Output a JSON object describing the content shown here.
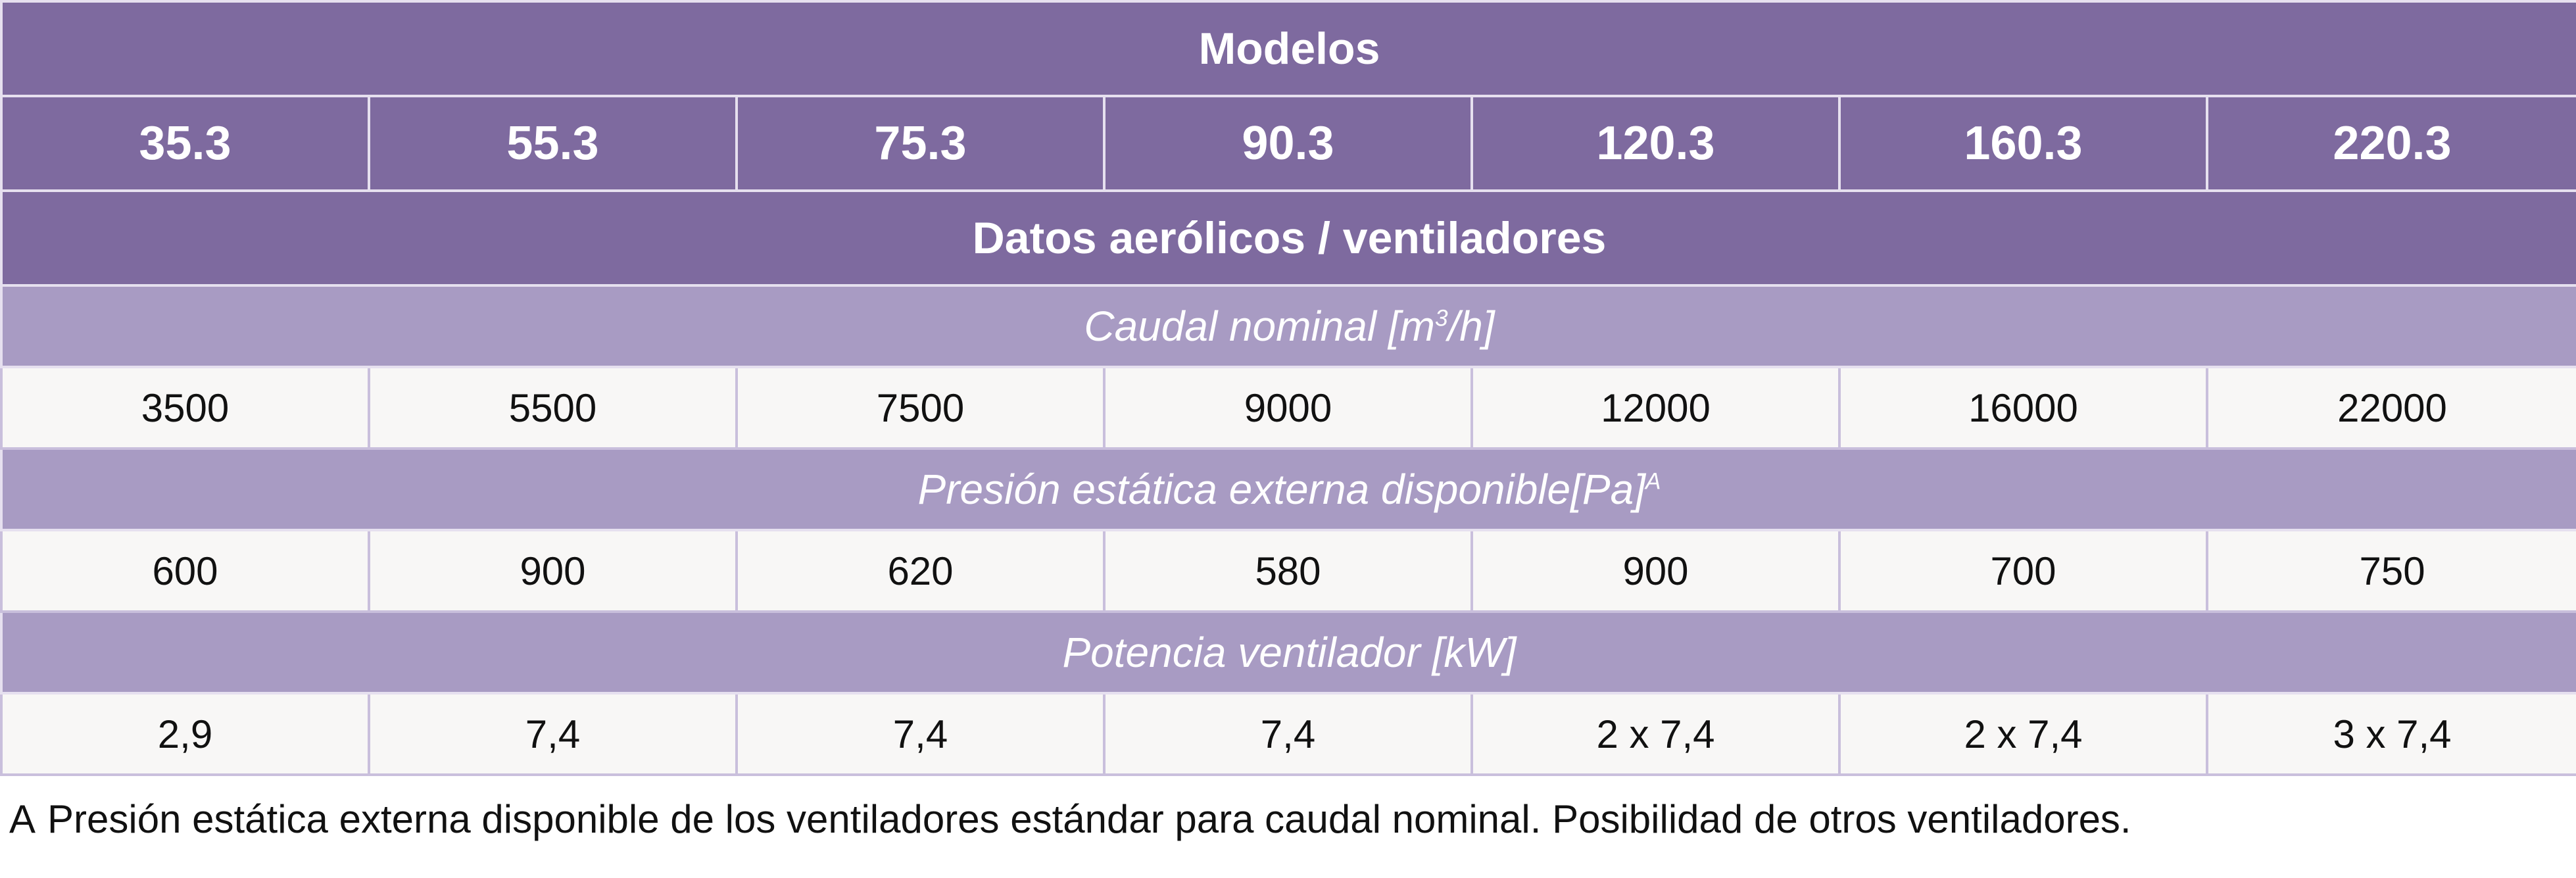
{
  "table": {
    "header_title": "Modelos",
    "models": [
      "35.3",
      "55.3",
      "75.3",
      "90.3",
      "120.3",
      "160.3",
      "220.3"
    ],
    "section_title": "Datos aerólicos / ventiladores",
    "groups": [
      {
        "label": "Caudal nominal [m",
        "label_sup": "3",
        "label_tail": "/h]",
        "values": [
          "3500",
          "5500",
          "7500",
          "9000",
          "12000",
          "16000",
          "22000"
        ]
      },
      {
        "label": "Presión estática externa disponible[Pa]",
        "label_sup": "A",
        "label_tail": "",
        "values": [
          "600",
          "900",
          "620",
          "580",
          "900",
          "700",
          "750"
        ]
      },
      {
        "label": "Potencia ventilador [kW]",
        "label_sup": "",
        "label_tail": "",
        "values": [
          "2,9",
          "7,4",
          "7,4",
          "7,4",
          "2 x 7,4",
          "2 x 7,4",
          "3 x 7,4"
        ]
      }
    ]
  },
  "footnote": {
    "marker": "A",
    "text": "Presión estática externa disponible de los ventiladores estándar para caudal nominal. Posibilidad de otros ventiladores."
  },
  "colors": {
    "header_purple": "#7e6a9f",
    "subheader_lilac": "#a89bc3",
    "value_row_bg": "#f8f7f6"
  }
}
